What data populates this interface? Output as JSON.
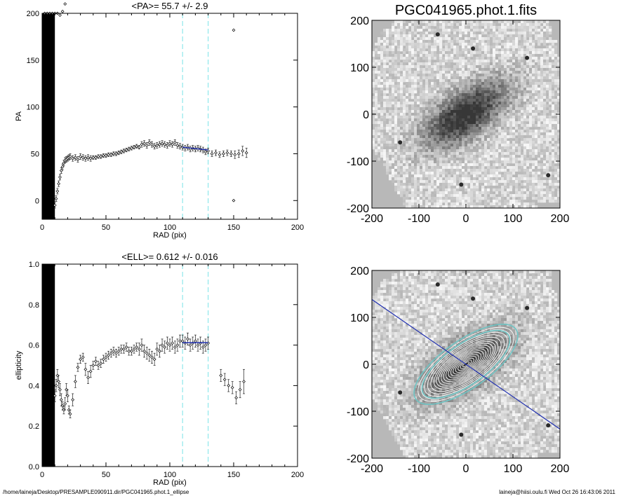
{
  "footer": {
    "path": "/home/laineja/Desktop/PRESAMPLE090911.dir/PGC041965.phot.1_ellipse",
    "user_time": "laineja@hiisi.oulu.fi  Wed Oct 26 16:43:06 2011"
  },
  "colors": {
    "marker": "#000000",
    "fit": "#1f2fb0",
    "guide": "#8fe8ec",
    "contour": "#6ec4c4"
  },
  "chart_data": [
    {
      "type": "scatter",
      "title": "<PA>=  55.7 +/-   2.9",
      "xlabel": "RAD (pix)",
      "ylabel": "PA",
      "xlim": [
        0,
        200
      ],
      "ylim": [
        -20,
        200
      ],
      "xticks": [
        "0",
        "50",
        "100",
        "150",
        "200"
      ],
      "yticks": [
        "0",
        "50",
        "100",
        "150",
        "200"
      ],
      "ytick_values": [
        0,
        50,
        100,
        150,
        200
      ],
      "vlines": [
        110,
        130
      ],
      "fit_line": {
        "x": [
          110,
          130
        ],
        "y": [
          57,
          54
        ]
      },
      "masked_region": [
        0,
        10
      ],
      "series": [
        {
          "x": [
            10,
            11,
            12,
            13,
            14,
            15,
            16,
            17,
            18,
            19,
            20,
            21,
            22,
            24,
            26,
            28,
            30,
            32,
            34,
            36,
            38,
            40,
            42,
            44,
            46,
            48,
            50,
            52,
            54,
            56,
            58,
            60,
            62,
            64,
            66,
            68,
            70,
            72,
            74,
            76,
            78,
            80,
            82,
            84,
            86,
            88,
            90,
            92,
            94,
            96,
            98,
            100,
            102,
            104,
            106,
            108,
            110,
            112,
            114,
            116,
            118,
            120,
            122,
            124,
            126,
            128,
            130,
            133,
            136,
            139,
            142,
            145,
            148,
            151,
            154,
            157,
            160
          ],
          "y": [
            -5,
            2,
            10,
            18,
            25,
            32,
            36,
            40,
            43,
            44,
            45,
            46,
            47,
            45,
            46,
            44,
            47,
            46,
            45,
            46,
            45,
            46,
            46,
            47,
            47,
            48,
            48,
            49,
            49,
            50,
            50,
            51,
            52,
            53,
            54,
            55,
            56,
            57,
            58,
            57,
            60,
            61,
            59,
            62,
            60,
            58,
            59,
            60,
            61,
            60,
            59,
            61,
            60,
            62,
            59,
            58,
            57,
            56,
            57,
            55,
            56,
            55,
            56,
            55,
            54,
            52,
            53,
            50,
            51,
            49,
            50,
            51,
            50,
            49,
            50,
            53,
            51
          ],
          "err": [
            3,
            3,
            3,
            3,
            3,
            3,
            3,
            3,
            3,
            3,
            3,
            3,
            3,
            3,
            3,
            3,
            3,
            3,
            3,
            3,
            3,
            2,
            2,
            2,
            2,
            2,
            2,
            2,
            2,
            2,
            2,
            2,
            2,
            2,
            2,
            2,
            2,
            2,
            2,
            2,
            3,
            3,
            3,
            3,
            3,
            3,
            3,
            3,
            3,
            3,
            3,
            3,
            3,
            3,
            3,
            3,
            3,
            3,
            3,
            3,
            3,
            3,
            3,
            3,
            3,
            3,
            3,
            3,
            3,
            3,
            3,
            3,
            3,
            4,
            4,
            5,
            5
          ]
        },
        {
          "x": [
            2,
            4,
            6,
            8,
            10,
            12,
            14,
            16,
            18
          ],
          "y": [
            200,
            200,
            200,
            200,
            200,
            200,
            198,
            202,
            210
          ]
        },
        {
          "x": [
            150,
            150
          ],
          "y": [
            182,
            0
          ]
        }
      ]
    },
    {
      "type": "scatter",
      "title": "<ELL>= 0.612 +/-  0.016",
      "xlabel": "RAD (pix)",
      "ylabel": "ellipticity",
      "xlim": [
        0,
        200
      ],
      "ylim": [
        0,
        1
      ],
      "xticks": [
        "0",
        "50",
        "100",
        "150",
        "200"
      ],
      "yticks": [
        "0.0",
        "0.2",
        "0.4",
        "0.6",
        "0.8",
        "1.0"
      ],
      "ytick_values": [
        0,
        0.2,
        0.4,
        0.6,
        0.8,
        1.0
      ],
      "vlines": [
        110,
        130
      ],
      "fit_line": {
        "x": [
          110,
          130
        ],
        "y": [
          0.612,
          0.612
        ]
      },
      "masked_region": [
        0,
        10
      ],
      "series": [
        {
          "x": [
            10,
            11,
            12,
            13,
            14,
            15,
            16,
            17,
            18,
            19,
            20,
            21,
            22,
            24,
            26,
            28,
            30,
            32,
            34,
            36,
            38,
            40,
            42,
            44,
            46,
            48,
            50,
            52,
            54,
            56,
            58,
            60,
            62,
            64,
            66,
            68,
            70,
            72,
            74,
            76,
            78,
            80,
            82,
            84,
            86,
            88,
            90,
            92,
            94,
            96,
            98,
            100,
            102,
            104,
            106,
            108,
            110,
            112,
            114,
            116,
            118,
            120,
            122,
            124,
            126,
            128,
            130,
            140,
            143,
            146,
            149,
            152,
            155,
            158
          ],
          "y": [
            0.35,
            0.4,
            0.45,
            0.42,
            0.38,
            0.33,
            0.3,
            0.28,
            0.31,
            0.38,
            0.35,
            0.28,
            0.26,
            0.33,
            0.42,
            0.49,
            0.53,
            0.54,
            0.48,
            0.44,
            0.47,
            0.5,
            0.52,
            0.5,
            0.51,
            0.53,
            0.54,
            0.55,
            0.56,
            0.57,
            0.56,
            0.57,
            0.58,
            0.58,
            0.59,
            0.57,
            0.57,
            0.58,
            0.59,
            0.58,
            0.6,
            0.57,
            0.56,
            0.55,
            0.54,
            0.53,
            0.58,
            0.57,
            0.6,
            0.59,
            0.61,
            0.6,
            0.61,
            0.59,
            0.6,
            0.62,
            0.62,
            0.61,
            0.63,
            0.6,
            0.61,
            0.62,
            0.6,
            0.61,
            0.59,
            0.6,
            0.61,
            0.45,
            0.43,
            0.4,
            0.39,
            0.34,
            0.38,
            0.42
          ],
          "err": [
            0.03,
            0.03,
            0.03,
            0.03,
            0.03,
            0.03,
            0.02,
            0.02,
            0.03,
            0.03,
            0.03,
            0.02,
            0.02,
            0.03,
            0.03,
            0.02,
            0.02,
            0.02,
            0.03,
            0.03,
            0.03,
            0.02,
            0.02,
            0.02,
            0.02,
            0.02,
            0.02,
            0.02,
            0.02,
            0.02,
            0.02,
            0.02,
            0.02,
            0.02,
            0.02,
            0.02,
            0.02,
            0.02,
            0.02,
            0.03,
            0.03,
            0.03,
            0.03,
            0.03,
            0.03,
            0.03,
            0.03,
            0.03,
            0.03,
            0.03,
            0.03,
            0.03,
            0.03,
            0.03,
            0.03,
            0.03,
            0.03,
            0.03,
            0.03,
            0.03,
            0.03,
            0.03,
            0.03,
            0.03,
            0.03,
            0.03,
            0.03,
            0.03,
            0.03,
            0.03,
            0.03,
            0.03,
            0.04,
            0.06
          ]
        }
      ]
    },
    {
      "type": "heatmap",
      "title": "PGC041965.phot.1.fits",
      "xlim": [
        -200,
        200
      ],
      "ylim": [
        -200,
        200
      ],
      "xticks": [
        "-200",
        "-100",
        "0",
        "100",
        "200"
      ],
      "yticks": [
        "200",
        "100",
        "0",
        "-100",
        "-200"
      ],
      "tick_values": [
        -200,
        -100,
        0,
        100,
        200
      ],
      "galaxy": {
        "pa_deg": 35,
        "a": 120,
        "b": 55
      }
    },
    {
      "type": "heatmap",
      "title": "",
      "xlim": [
        -200,
        200
      ],
      "ylim": [
        -200,
        200
      ],
      "xticks": [
        "-200",
        "-100",
        "0",
        "100",
        "200"
      ],
      "yticks": [
        "200",
        "100",
        "0",
        "-100",
        "-200"
      ],
      "tick_values": [
        -200,
        -100,
        0,
        100,
        200
      ],
      "major_axis_line": {
        "x": [
          -200,
          200
        ],
        "y": [
          138,
          -138
        ]
      },
      "contours": {
        "pa_deg": 35,
        "sma": [
          8,
          14,
          20,
          26,
          32,
          38,
          44,
          50,
          56,
          62,
          68,
          74,
          80,
          88,
          96,
          104,
          112,
          120,
          130
        ],
        "ell": 0.61
      },
      "highlight_contours_sma": [
        110,
        130
      ]
    }
  ]
}
